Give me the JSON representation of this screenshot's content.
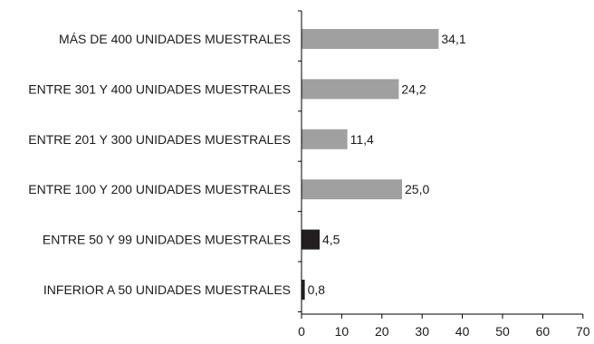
{
  "chart_data": {
    "type": "bar",
    "orientation": "horizontal",
    "categories": [
      "MÁS DE 400 UNIDADES MUESTRALES",
      "ENTRE 301 Y 400 UNIDADES MUESTRALES",
      "ENTRE 201 Y 300 UNIDADES MUESTRALES",
      "ENTRE 100 Y 200 UNIDADES MUESTRALES",
      "ENTRE 50 Y 99 UNIDADES MUESTRALES",
      "INFERIOR A 50 UNIDADES MUESTRALES"
    ],
    "values": [
      34.1,
      24.2,
      11.4,
      25.0,
      4.5,
      0.8
    ],
    "value_labels": [
      "34,1",
      "24,2",
      "11,4",
      "25,0",
      "4,5",
      "0,8"
    ],
    "bar_colors": [
      "#a0a0a0",
      "#a0a0a0",
      "#a0a0a0",
      "#a0a0a0",
      "#231f20",
      "#231f20"
    ],
    "xlim": [
      0,
      70
    ],
    "xticks": [
      0,
      10,
      20,
      30,
      40,
      50,
      60,
      70
    ],
    "title": "",
    "xlabel": "",
    "ylabel": "",
    "grid": false,
    "legend": "none"
  }
}
